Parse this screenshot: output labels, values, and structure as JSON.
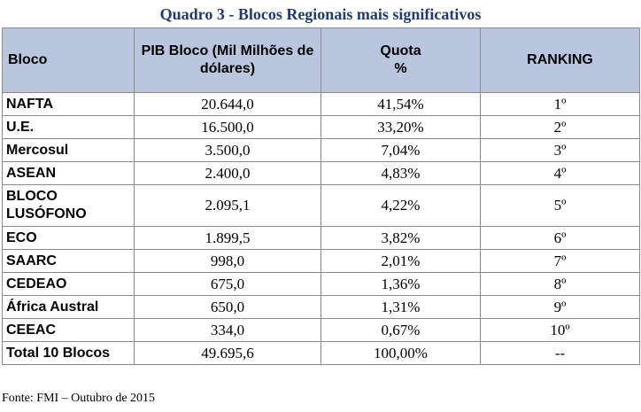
{
  "title": "Quadro 3 - Blocos Regionais mais significativos",
  "headers": {
    "bloco": "Bloco",
    "pib": "PIB Bloco (Mil Milhões de dólares)",
    "quota_line1": "Quota",
    "quota_line2": "%",
    "ranking": "RANKING"
  },
  "rows": [
    {
      "bloco": "NAFTA",
      "pib": "20.644,0",
      "quota": "41,54%",
      "ranking": "1º"
    },
    {
      "bloco": "U.E.",
      "pib": "16.500,0",
      "quota": "33,20%",
      "ranking": "2º"
    },
    {
      "bloco": "Mercosul",
      "pib": "3.500,0",
      "quota": "7,04%",
      "ranking": "3º"
    },
    {
      "bloco": "ASEAN",
      "pib": "2.400,0",
      "quota": "4,83%",
      "ranking": "4º"
    },
    {
      "bloco": "BLOCO LUSÓFONO",
      "pib": "2.095,1",
      "quota": "4,22%",
      "ranking": "5º"
    },
    {
      "bloco": "ECO",
      "pib": "1.899,5",
      "quota": "3,82%",
      "ranking": "6º"
    },
    {
      "bloco": "SAARC",
      "pib": "998,0",
      "quota": "2,01%",
      "ranking": "7º"
    },
    {
      "bloco": "CEDEAO",
      "pib": "675,0",
      "quota": "1,36%",
      "ranking": "8º"
    },
    {
      "bloco": "África Austral",
      "pib": "650,0",
      "quota": "1,31%",
      "ranking": "9º"
    },
    {
      "bloco": "CEEAC",
      "pib": "334,0",
      "quota": "0,67%",
      "ranking": "10º"
    },
    {
      "bloco": "Total 10 Blocos",
      "pib": "49.695,6",
      "quota": "100,00%",
      "ranking": "--"
    }
  ],
  "source": "Fonte: FMI – Outubro de 2015",
  "colors": {
    "title": "#1f3b70",
    "header_background": "#b9c6de",
    "border": "#8a8a8a"
  }
}
